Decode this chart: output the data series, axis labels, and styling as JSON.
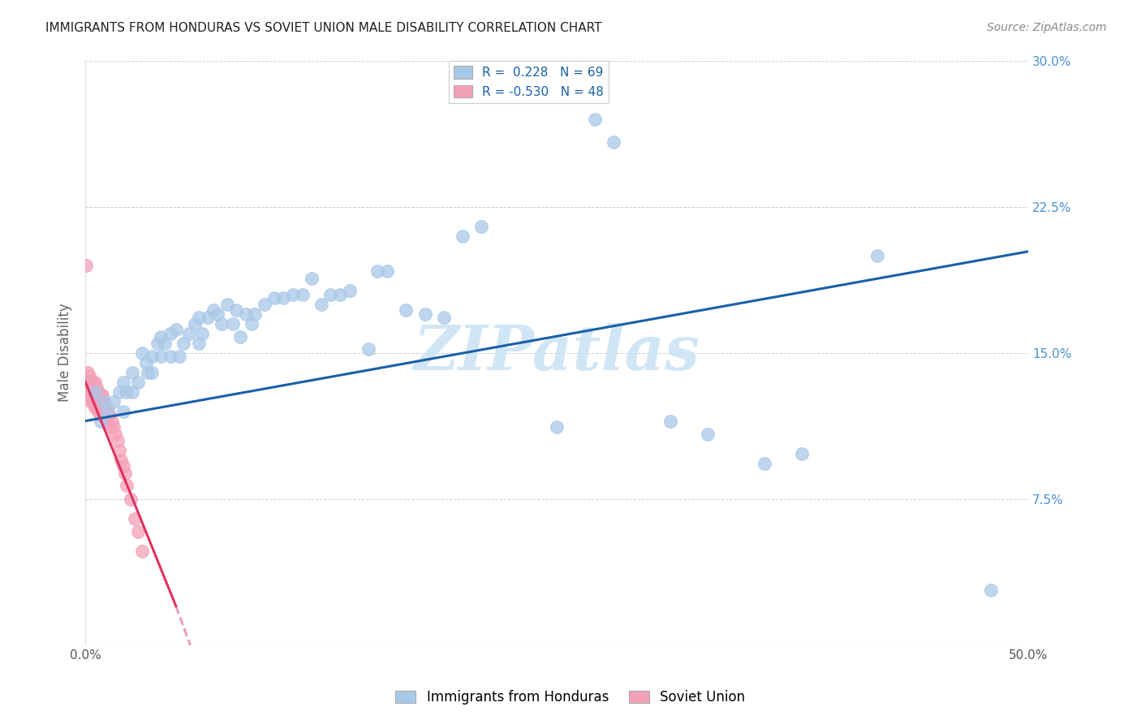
{
  "title": "IMMIGRANTS FROM HONDURAS VS SOVIET UNION MALE DISABILITY CORRELATION CHART",
  "source": "Source: ZipAtlas.com",
  "ylabel": "Male Disability",
  "xlim": [
    0,
    0.5
  ],
  "ylim": [
    0,
    0.3
  ],
  "r1": 0.228,
  "n1": 69,
  "r2": -0.53,
  "n2": 48,
  "color_blue": "#a8c8e8",
  "color_pink": "#f4a0b8",
  "color_blue_line": "#1a5fa8",
  "color_pink_line": "#e03060",
  "watermark_text": "ZIPatlas",
  "watermark_color": "#cce4f4",
  "background_color": "#ffffff",
  "grid_color": "#cccccc",
  "legend_label1": "Immigrants from Honduras",
  "legend_label2": "Soviet Union",
  "blue_x": [
    0.005,
    0.008,
    0.01,
    0.012,
    0.015,
    0.018,
    0.02,
    0.02,
    0.022,
    0.025,
    0.025,
    0.028,
    0.03,
    0.032,
    0.033,
    0.035,
    0.035,
    0.038,
    0.04,
    0.04,
    0.042,
    0.045,
    0.045,
    0.048,
    0.05,
    0.052,
    0.055,
    0.058,
    0.06,
    0.06,
    0.062,
    0.065,
    0.068,
    0.07,
    0.072,
    0.075,
    0.078,
    0.08,
    0.082,
    0.085,
    0.088,
    0.09,
    0.095,
    0.1,
    0.105,
    0.11,
    0.115,
    0.12,
    0.125,
    0.13,
    0.135,
    0.14,
    0.15,
    0.155,
    0.16,
    0.17,
    0.18,
    0.19,
    0.2,
    0.21,
    0.25,
    0.27,
    0.28,
    0.31,
    0.33,
    0.36,
    0.38,
    0.42,
    0.48
  ],
  "blue_y": [
    0.13,
    0.115,
    0.125,
    0.12,
    0.125,
    0.13,
    0.135,
    0.12,
    0.13,
    0.14,
    0.13,
    0.135,
    0.15,
    0.145,
    0.14,
    0.148,
    0.14,
    0.155,
    0.158,
    0.148,
    0.155,
    0.16,
    0.148,
    0.162,
    0.148,
    0.155,
    0.16,
    0.165,
    0.168,
    0.155,
    0.16,
    0.168,
    0.172,
    0.17,
    0.165,
    0.175,
    0.165,
    0.172,
    0.158,
    0.17,
    0.165,
    0.17,
    0.175,
    0.178,
    0.178,
    0.18,
    0.18,
    0.188,
    0.175,
    0.18,
    0.18,
    0.182,
    0.152,
    0.192,
    0.192,
    0.172,
    0.17,
    0.168,
    0.21,
    0.215,
    0.112,
    0.27,
    0.258,
    0.115,
    0.108,
    0.093,
    0.098,
    0.2,
    0.028
  ],
  "pink_x": [
    0.0005,
    0.001,
    0.001,
    0.002,
    0.002,
    0.002,
    0.003,
    0.003,
    0.003,
    0.004,
    0.004,
    0.004,
    0.005,
    0.005,
    0.005,
    0.005,
    0.006,
    0.006,
    0.006,
    0.007,
    0.007,
    0.007,
    0.008,
    0.008,
    0.008,
    0.009,
    0.009,
    0.01,
    0.01,
    0.011,
    0.011,
    0.012,
    0.012,
    0.013,
    0.013,
    0.014,
    0.015,
    0.016,
    0.017,
    0.018,
    0.019,
    0.02,
    0.021,
    0.022,
    0.024,
    0.026,
    0.028,
    0.03
  ],
  "pink_y": [
    0.195,
    0.14,
    0.135,
    0.138,
    0.132,
    0.128,
    0.135,
    0.13,
    0.125,
    0.135,
    0.13,
    0.125,
    0.135,
    0.13,
    0.128,
    0.122,
    0.132,
    0.128,
    0.122,
    0.13,
    0.125,
    0.12,
    0.128,
    0.122,
    0.118,
    0.128,
    0.122,
    0.125,
    0.118,
    0.122,
    0.118,
    0.12,
    0.115,
    0.118,
    0.112,
    0.115,
    0.112,
    0.108,
    0.105,
    0.1,
    0.095,
    0.092,
    0.088,
    0.082,
    0.075,
    0.065,
    0.058,
    0.048
  ],
  "blue_line_x0": 0.0,
  "blue_line_y0": 0.115,
  "blue_line_x1": 0.5,
  "blue_line_y1": 0.202,
  "pink_line_x0": 0.0,
  "pink_line_y0": 0.135,
  "pink_line_x1": 0.048,
  "pink_line_y1": 0.02
}
